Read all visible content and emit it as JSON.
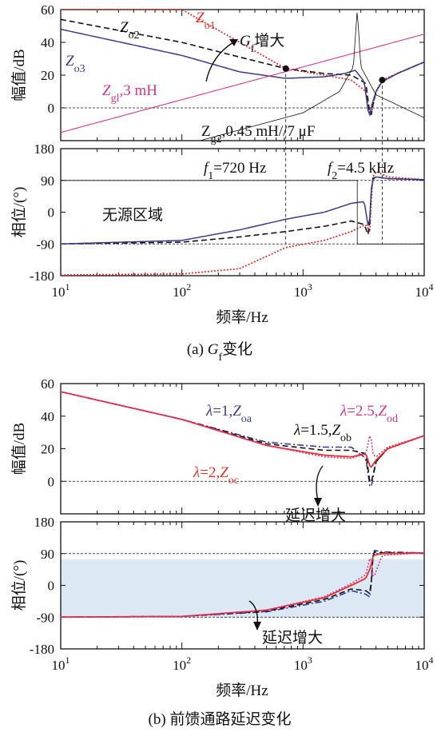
{
  "panels": [
    {
      "caption": "(a) Gf变化",
      "caption_italic": "G",
      "caption_sub": "f",
      "caption_rest": "变化",
      "caption_prefix": "(a)",
      "xlabel": "频率/Hz",
      "mag": {
        "ylabel": "幅值/dB",
        "yticks": [
          "60",
          "40",
          "20",
          "0"
        ],
        "labels": {
          "zo2": {
            "main": "Z",
            "sub": "o2",
            "color": "#111111"
          },
          "zo1": {
            "main": "Z",
            "sub": "o1",
            "color": "#e8302a"
          },
          "zo3": {
            "main": "Z",
            "sub": "o3",
            "color": "#3a3a8c"
          },
          "gf": {
            "main": "G",
            "sub": "f",
            "rest": "增大"
          },
          "zg1": {
            "main": "Z",
            "sub": "gl",
            "rest": ",3 mH",
            "color": "#d6358c"
          },
          "zg2": {
            "main": "Z",
            "sub": "g2",
            "rest": ",0.45 mH//7 μF"
          }
        }
      },
      "phase": {
        "ylabel": "相位/(°)",
        "yticks": [
          "180",
          "90",
          "0",
          "-90",
          "-180"
        ],
        "region_label": "无源区域",
        "f1": {
          "main": "f",
          "sub": "1",
          "rest": "=720 Hz"
        },
        "f2": {
          "main": "f",
          "sub": "2",
          "rest": "=4.5 kHz"
        }
      }
    },
    {
      "caption": "(b) 前馈通路延迟变化",
      "caption_prefix": "(b)",
      "caption_rest": "前馈通路延迟变化",
      "xlabel": "频率/Hz",
      "mag": {
        "ylabel": "幅值/dB",
        "yticks": [
          "60",
          "40",
          "20",
          "0"
        ],
        "labels": {
          "za": {
            "lam": "λ",
            "rest": "=1,",
            "main": "Z",
            "sub": "oa",
            "color": "#3a3a8c"
          },
          "zb": {
            "lam": "λ",
            "rest": "=1.5,",
            "main": "Z",
            "sub": "ob",
            "color": "#111111"
          },
          "zd": {
            "lam": "λ",
            "rest": "=2.5,",
            "main": "Z",
            "sub": "od",
            "color": "#d6358c"
          },
          "zc": {
            "lam": "λ",
            "rest": "=2,",
            "main": "Z",
            "sub": "oc",
            "color": "#e8302a"
          }
        },
        "delay_label": "延迟增大"
      },
      "phase": {
        "ylabel": "相位/(°)",
        "yticks": [
          "180",
          "90",
          "0",
          "-90",
          "-180"
        ],
        "delay_label": "延迟增大"
      }
    }
  ],
  "xticks": [
    {
      "base": "10",
      "exp": "1"
    },
    {
      "base": "10",
      "exp": "2"
    },
    {
      "base": "10",
      "exp": "3"
    },
    {
      "base": "10",
      "exp": "4"
    }
  ],
  "chart_data": [
    {
      "type": "line",
      "title": "(a) Gf变化 — 幅值",
      "x_scale": "log",
      "xlim": [
        10,
        10000
      ],
      "ylim": [
        -20,
        60
      ],
      "xlabel": "频率/Hz",
      "ylabel": "幅值/dB",
      "series": [
        {
          "name": "Zo1",
          "x": [
            10,
            100,
            300,
            720,
            1500,
            2500,
            3300,
            3600,
            3800,
            4000,
            4500,
            6000,
            10000
          ],
          "y": [
            85,
            60,
            40,
            24,
            20,
            17,
            10,
            -7,
            3,
            10,
            17,
            21,
            28
          ]
        },
        {
          "name": "Zo2",
          "x": [
            10,
            100,
            300,
            720,
            1500,
            2500,
            3300,
            3600,
            3800,
            4000,
            4500,
            6000,
            10000
          ],
          "y": [
            54,
            40,
            31,
            24,
            21,
            20,
            15,
            -7,
            3,
            10,
            16,
            21,
            28
          ]
        },
        {
          "name": "Zo3",
          "x": [
            10,
            100,
            300,
            720,
            1500,
            2200,
            2700,
            3200,
            3500,
            3700,
            4000,
            4500,
            6000,
            10000
          ],
          "y": [
            48,
            32,
            22,
            18,
            19,
            21,
            23,
            16,
            -6,
            2,
            10,
            16,
            21,
            28
          ]
        },
        {
          "name": "Zg1,3 mH",
          "x": [
            10,
            10000
          ],
          "y": [
            -15,
            45
          ]
        },
        {
          "name": "Zg2,0.45 mH//7 μF",
          "x": [
            100,
            1000,
            2000,
            2600,
            2800,
            3000,
            4000,
            10000
          ],
          "y": [
            -23,
            -3,
            10,
            25,
            60,
            25,
            8,
            -6
          ]
        }
      ]
    },
    {
      "type": "line",
      "title": "(a) Gf变化 — 相位",
      "x_scale": "log",
      "xlim": [
        10,
        10000
      ],
      "ylim": [
        -180,
        180
      ],
      "xlabel": "频率/Hz",
      "ylabel": "相位/(°)",
      "annotations": [
        "f1=720 Hz",
        "f2=4.5 kHz",
        "无源区域"
      ],
      "series": [
        {
          "name": "Zo1",
          "x": [
            10,
            100,
            300,
            720,
            1500,
            2500,
            3300,
            3600,
            3700,
            4000,
            5000,
            10000
          ],
          "y": [
            -178,
            -175,
            -160,
            -100,
            -80,
            -55,
            -35,
            -60,
            95,
            115,
            100,
            92
          ]
        },
        {
          "name": "Zo2",
          "x": [
            10,
            100,
            300,
            720,
            1500,
            2500,
            3200,
            3500,
            3700,
            4000,
            5000,
            10000
          ],
          "y": [
            -90,
            -85,
            -70,
            -55,
            -40,
            -25,
            -35,
            -70,
            95,
            100,
            95,
            92
          ]
        },
        {
          "name": "Zo3",
          "x": [
            10,
            100,
            300,
            720,
            1500,
            2500,
            3200,
            3500,
            3700,
            4000,
            5000,
            10000
          ],
          "y": [
            -90,
            -80,
            -50,
            -20,
            0,
            25,
            30,
            -55,
            90,
            100,
            95,
            92
          ]
        },
        {
          "name": "Zg2,0.45 mH//7 μF",
          "x": [
            10,
            2800,
            2800,
            10000
          ],
          "y": [
            90,
            90,
            -90,
            -90
          ]
        }
      ]
    },
    {
      "type": "line",
      "title": "(b) 前馈通路延迟变化 — 幅值",
      "x_scale": "log",
      "xlim": [
        10,
        10000
      ],
      "ylim": [
        -20,
        60
      ],
      "xlabel": "频率/Hz",
      "ylabel": "幅值/dB",
      "annotations": [
        "延迟增大"
      ],
      "series": [
        {
          "name": "λ=1,Zoa",
          "x": [
            10,
            100,
            500,
            1500,
            2500,
            3300,
            3600,
            4000,
            5000,
            10000
          ],
          "y": [
            55,
            38,
            24,
            21,
            21,
            14,
            -6,
            12,
            20,
            28
          ]
        },
        {
          "name": "λ=1.5,Zob",
          "x": [
            10,
            100,
            500,
            1500,
            2500,
            3300,
            3600,
            4000,
            5000,
            10000
          ],
          "y": [
            55,
            38,
            23,
            19,
            19,
            17,
            -3,
            12,
            20,
            28
          ]
        },
        {
          "name": "λ=2,Zoc",
          "x": [
            10,
            100,
            500,
            1500,
            2500,
            3300,
            3600,
            4000,
            5000,
            10000
          ],
          "y": [
            55,
            38,
            22,
            16,
            15,
            17,
            8,
            13,
            20,
            28
          ]
        },
        {
          "name": "λ=2.5,Zod",
          "x": [
            10,
            100,
            500,
            1500,
            2500,
            3300,
            3600,
            3800,
            4000,
            5000,
            10000
          ],
          "y": [
            55,
            38,
            22,
            15,
            14,
            17,
            30,
            16,
            15,
            21,
            28
          ]
        }
      ]
    },
    {
      "type": "line",
      "title": "(b) 前馈通路延迟变化 — 相位",
      "x_scale": "log",
      "xlim": [
        10,
        10000
      ],
      "ylim": [
        -180,
        180
      ],
      "xlabel": "频率/Hz",
      "ylabel": "相位/(°)",
      "annotations": [
        "延迟增大"
      ],
      "series": [
        {
          "name": "λ=1,Zoa",
          "x": [
            10,
            100,
            500,
            1500,
            2500,
            3300,
            3600,
            3800,
            4500,
            10000
          ],
          "y": [
            -90,
            -88,
            -75,
            -45,
            -15,
            -25,
            -35,
            100,
            95,
            92
          ]
        },
        {
          "name": "λ=1.5,Zob",
          "x": [
            10,
            100,
            500,
            1500,
            2500,
            3300,
            3600,
            3800,
            4500,
            10000
          ],
          "y": [
            -90,
            -88,
            -73,
            -40,
            -10,
            -15,
            -25,
            95,
            92,
            92
          ]
        },
        {
          "name": "λ=2,Zoc",
          "x": [
            10,
            100,
            500,
            1500,
            2500,
            3300,
            3600,
            3800,
            4500,
            10000
          ],
          "y": [
            -90,
            -88,
            -70,
            -35,
            0,
            20,
            50,
            85,
            90,
            92
          ]
        },
        {
          "name": "λ=2.5,Zod",
          "x": [
            10,
            100,
            500,
            1500,
            2500,
            3300,
            3600,
            3800,
            4500,
            10000
          ],
          "y": [
            -90,
            -88,
            -70,
            -32,
            5,
            30,
            85,
            20,
            85,
            92
          ]
        }
      ]
    }
  ]
}
